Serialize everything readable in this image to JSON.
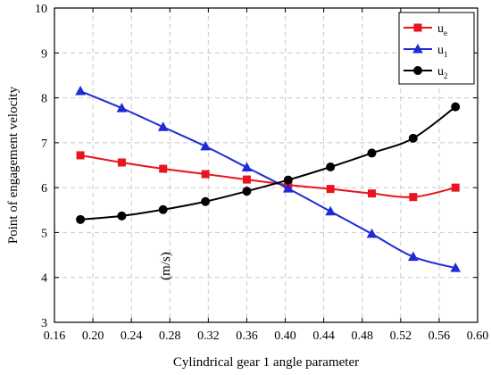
{
  "chart_data": {
    "type": "line",
    "xlabel": "Cylindrical gear 1 angle parameter",
    "ylabel": "Point of engagement velocity",
    "ylabel_unit": "(m/s)",
    "xlim": [
      0.16,
      0.6
    ],
    "ylim": [
      3,
      10
    ],
    "x_ticks": [
      "0.16",
      "0.20",
      "0.24",
      "0.28",
      "0.32",
      "0.36",
      "0.40",
      "0.44",
      "0.48",
      "0.52",
      "0.56",
      "0.60"
    ],
    "y_ticks": [
      "3",
      "4",
      "5",
      "6",
      "7",
      "8",
      "9",
      "10"
    ],
    "grid": true,
    "legend_position": "top-right",
    "x": [
      0.187,
      0.23,
      0.273,
      0.317,
      0.36,
      0.403,
      0.447,
      0.49,
      0.533,
      0.577
    ],
    "series": [
      {
        "name": "u",
        "sub": "e",
        "color": "#e8141e",
        "marker": "square",
        "values": [
          6.72,
          6.56,
          6.42,
          6.3,
          6.18,
          6.06,
          5.97,
          5.87,
          5.79,
          6.0
        ]
      },
      {
        "name": "u",
        "sub": "1",
        "color": "#1f2bd8",
        "marker": "triangle",
        "values": [
          8.15,
          7.77,
          7.35,
          6.92,
          6.45,
          5.98,
          5.47,
          4.97,
          4.46,
          4.21
        ]
      },
      {
        "name": "u",
        "sub": "2",
        "color": "#000000",
        "marker": "circle",
        "values": [
          5.29,
          5.37,
          5.51,
          5.69,
          5.92,
          6.17,
          6.46,
          6.77,
          7.1,
          7.8
        ]
      }
    ]
  }
}
